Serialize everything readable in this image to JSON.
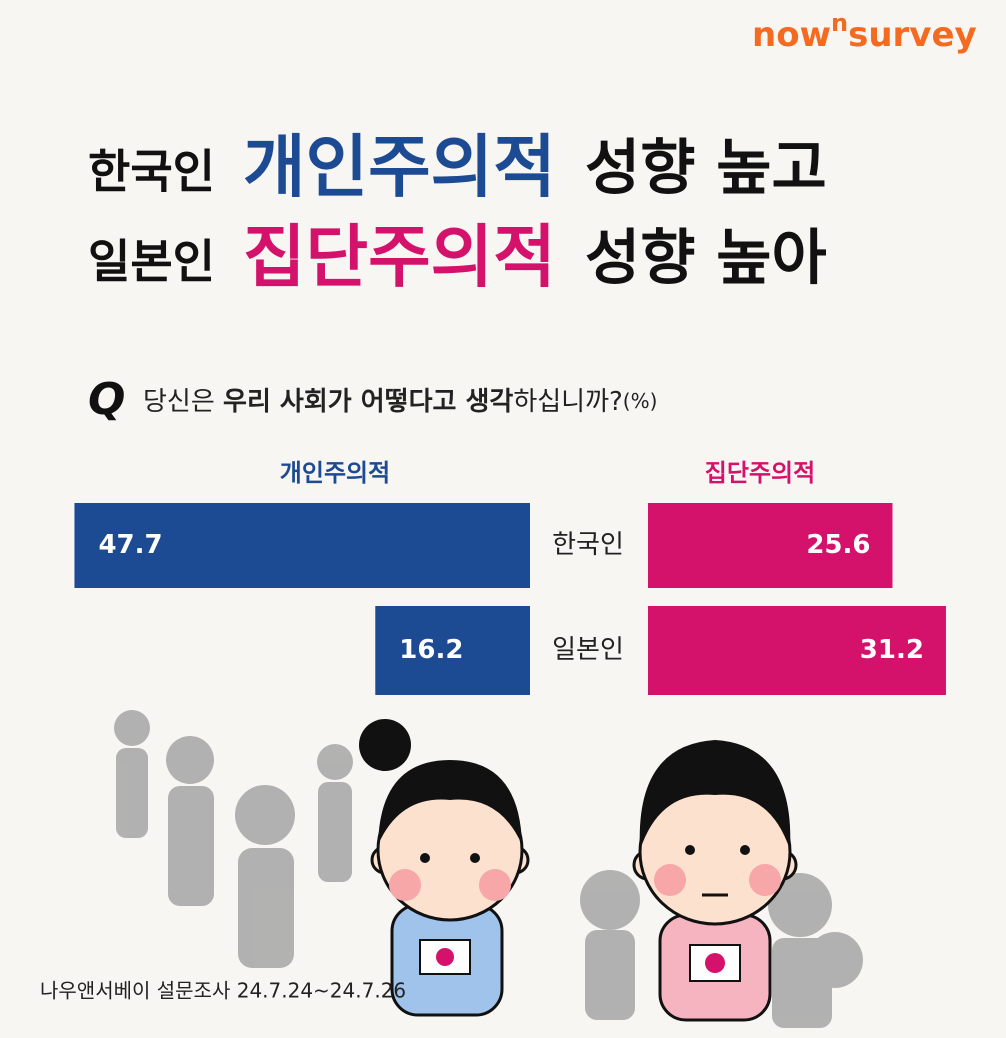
{
  "logo": {
    "part1": "now",
    "sup": "n",
    "part2": "survey"
  },
  "headline": [
    [
      "한국인",
      "개인주의적",
      "성향 높고"
    ],
    [
      "일본인",
      "집단주의적",
      "성향 높아"
    ]
  ],
  "question": {
    "q": "Q",
    "parts": [
      "당신은 ",
      "우리 사회가 어떻다고 생각",
      "하십니까?",
      "(%)"
    ]
  },
  "chart_data": {
    "type": "butterfly-bar",
    "categories": [
      "한국인",
      "일본인"
    ],
    "series": [
      {
        "name": "개인주의적",
        "color": "#1c4a93",
        "values": [
          47.7,
          16.2
        ]
      },
      {
        "name": "집단주의적",
        "color": "#d5126b",
        "values": [
          25.6,
          31.2
        ]
      }
    ]
  },
  "source": "나우앤서베이 설문조사 24.7.24~24.7.26"
}
